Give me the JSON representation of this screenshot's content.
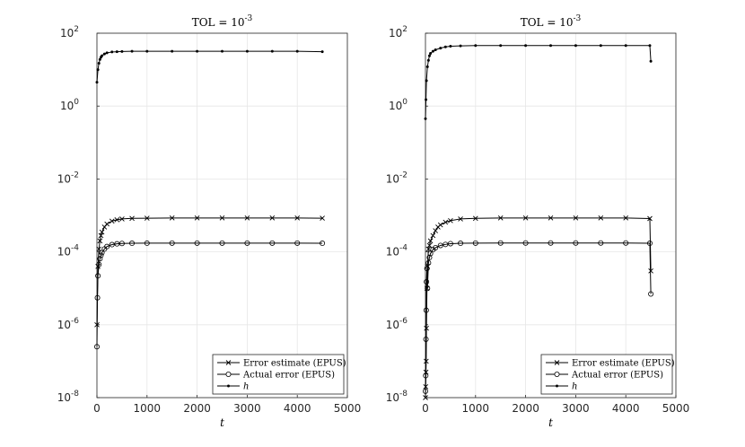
{
  "chart_data": [
    {
      "type": "line",
      "title": "TOL = 10",
      "title_exponent": "-3",
      "xlabel": "t",
      "xlim": [
        0,
        5000
      ],
      "ylim": [
        1e-08,
        100
      ],
      "yscale": "log",
      "grid": true,
      "legend_position": "bottom-right",
      "x_ticks": [
        "0",
        "1000",
        "2000",
        "3000",
        "4000",
        "5000"
      ],
      "y_ticks": [
        {
          "base": "10",
          "exp": "-8"
        },
        {
          "base": "10",
          "exp": "-6"
        },
        {
          "base": "10",
          "exp": "-4"
        },
        {
          "base": "10",
          "exp": "-2"
        },
        {
          "base": "10",
          "exp": "0"
        },
        {
          "base": "10",
          "exp": "2"
        }
      ],
      "series": [
        {
          "name": "Error estimate (EPUS)",
          "marker": "x",
          "x": [
            0,
            20,
            40,
            60,
            80,
            100,
            150,
            200,
            300,
            400,
            500,
            700,
            1000,
            1500,
            2000,
            2500,
            3000,
            3500,
            4000,
            4500
          ],
          "y": [
            1e-06,
            4e-05,
            0.00012,
            0.0002,
            0.00028,
            0.00035,
            0.00048,
            0.00058,
            0.0007,
            0.00076,
            0.0008,
            0.00083,
            0.00084,
            0.00085,
            0.00085,
            0.00085,
            0.00085,
            0.00085,
            0.00085,
            0.00084
          ]
        },
        {
          "name": "Actual error (EPUS)",
          "marker": "o",
          "x": [
            0,
            10,
            20,
            40,
            60,
            80,
            100,
            150,
            200,
            300,
            400,
            500,
            700,
            1000,
            1500,
            2000,
            2500,
            3000,
            3500,
            4000,
            4500
          ],
          "y": [
            2.5e-07,
            5.5e-06,
            2.2e-05,
            4.5e-05,
            6.5e-05,
            8e-05,
            9.5e-05,
            0.00012,
            0.00014,
            0.000158,
            0.000166,
            0.00017,
            0.000172,
            0.000173,
            0.000174,
            0.000174,
            0.000174,
            0.000174,
            0.000174,
            0.000174,
            0.000172
          ]
        },
        {
          "name": "h",
          "marker": ".",
          "x": [
            0,
            20,
            40,
            60,
            80,
            100,
            150,
            200,
            300,
            400,
            500,
            700,
            1000,
            1500,
            2000,
            2500,
            3000,
            3500,
            4000,
            4500
          ],
          "y": [
            4.5,
            10,
            15,
            19,
            22,
            24,
            27,
            29,
            30.5,
            31,
            31.5,
            32,
            32,
            32,
            32,
            32,
            32,
            32,
            32,
            31
          ]
        }
      ]
    },
    {
      "type": "line",
      "title": "TOL = 10",
      "title_exponent": "-3",
      "xlabel": "t",
      "xlim": [
        0,
        5000
      ],
      "ylim": [
        1e-08,
        100
      ],
      "yscale": "log",
      "grid": true,
      "legend_position": "bottom-right",
      "x_ticks": [
        "0",
        "1000",
        "2000",
        "3000",
        "4000",
        "5000"
      ],
      "y_ticks": [
        {
          "base": "10",
          "exp": "-8"
        },
        {
          "base": "10",
          "exp": "-6"
        },
        {
          "base": "10",
          "exp": "-4"
        },
        {
          "base": "10",
          "exp": "-2"
        },
        {
          "base": "10",
          "exp": "0"
        },
        {
          "base": "10",
          "exp": "2"
        }
      ],
      "series": [
        {
          "name": "Error estimate (EPUS)",
          "marker": "x",
          "x": [
            0,
            5,
            10,
            15,
            20,
            30,
            40,
            60,
            80,
            100,
            150,
            200,
            250,
            300,
            400,
            500,
            700,
            1000,
            1500,
            2000,
            2500,
            3000,
            3500,
            4000,
            4480,
            4500
          ],
          "y": [
            1e-08,
            2e-08,
            5e-08,
            1e-07,
            8e-07,
            1e-05,
            4e-05,
            0.00012,
            0.00015,
            0.0002,
            0.00028,
            0.00038,
            0.00048,
            0.00055,
            0.00065,
            0.00072,
            0.0008,
            0.00083,
            0.00085,
            0.00085,
            0.00085,
            0.00085,
            0.00085,
            0.00085,
            0.00082,
            3e-05
          ]
        },
        {
          "name": "Actual error (EPUS)",
          "marker": "o",
          "x": [
            0,
            5,
            10,
            15,
            20,
            30,
            40,
            60,
            80,
            100,
            150,
            200,
            300,
            400,
            500,
            700,
            1000,
            1500,
            2000,
            2500,
            3000,
            3500,
            4000,
            4480,
            4500
          ],
          "y": [
            1.5e-08,
            4e-08,
            4e-07,
            2.5e-06,
            1.5e-05,
            3.5e-05,
            1e-05,
            5e-05,
            7e-05,
            9e-05,
            0.000115,
            0.00013,
            0.00015,
            0.00016,
            0.000168,
            0.000172,
            0.000174,
            0.000175,
            0.000175,
            0.000175,
            0.000175,
            0.000175,
            0.000175,
            0.000172,
            7e-06
          ]
        },
        {
          "name": "h",
          "marker": ".",
          "x": [
            0,
            10,
            20,
            40,
            60,
            80,
            100,
            150,
            200,
            300,
            400,
            500,
            700,
            1000,
            1500,
            2000,
            2500,
            3000,
            3500,
            4000,
            4480,
            4500
          ],
          "y": [
            0.45,
            1.5,
            5,
            12,
            18,
            24,
            28,
            32,
            35,
            39,
            42,
            44,
            45,
            46,
            46,
            46,
            46,
            46,
            46,
            46,
            46,
            17
          ]
        }
      ]
    }
  ]
}
